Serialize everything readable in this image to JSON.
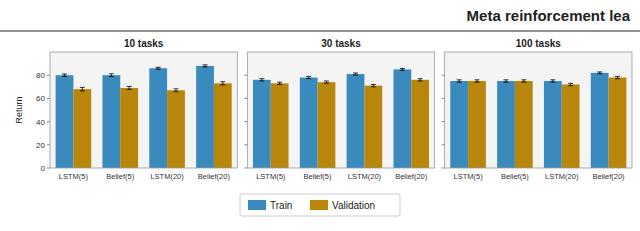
{
  "title": "Meta reinforcement lea",
  "chart_data": [
    {
      "type": "bar",
      "title": "10 tasks",
      "ylabel": "Return",
      "categories": [
        "LSTM(5)",
        "Belief(5)",
        "LSTM(20)",
        "Belief(20)"
      ],
      "series": [
        {
          "name": "Train",
          "color": "#3B8ABE",
          "values": [
            80,
            80,
            86,
            88
          ],
          "errors": [
            1.0,
            1.2,
            0.8,
            0.9
          ]
        },
        {
          "name": "Validation",
          "color": "#B8860B",
          "values": [
            68,
            69,
            67,
            73
          ],
          "errors": [
            1.5,
            1.3,
            1.2,
            1.4
          ]
        }
      ],
      "ylim": [
        0,
        100
      ],
      "yticks": [
        0,
        20,
        40,
        60,
        80
      ],
      "legend": "bottom"
    },
    {
      "type": "bar",
      "title": "30 tasks",
      "categories": [
        "LSTM(5)",
        "Belief(5)",
        "LSTM(20)",
        "Belief(20)"
      ],
      "series": [
        {
          "name": "Train",
          "color": "#3B8ABE",
          "values": [
            76,
            78,
            81,
            85
          ],
          "errors": [
            1.0,
            1.0,
            0.9,
            0.8
          ]
        },
        {
          "name": "Validation",
          "color": "#B8860B",
          "values": [
            73,
            74,
            71,
            76
          ],
          "errors": [
            1.0,
            1.0,
            1.0,
            1.0
          ]
        }
      ],
      "ylim": [
        0,
        100
      ],
      "yticks": [
        0,
        20,
        40,
        60,
        80
      ],
      "tick_labels": "x"
    },
    {
      "type": "bar",
      "title": "100 tasks",
      "categories": [
        "LSTM(5)",
        "Belief(5)",
        "LSTM(20)",
        "Belief(20)"
      ],
      "series": [
        {
          "name": "Train",
          "color": "#3B8ABE",
          "values": [
            75,
            75,
            75,
            82
          ],
          "errors": [
            1.0,
            1.0,
            1.0,
            0.8
          ]
        },
        {
          "name": "Validation",
          "color": "#B8860B",
          "values": [
            75,
            75,
            72,
            78
          ],
          "errors": [
            1.0,
            1.0,
            1.0,
            1.0
          ]
        }
      ],
      "ylim": [
        0,
        100
      ],
      "yticks": [
        0,
        20,
        40,
        60,
        80
      ],
      "tick_labels": "x"
    }
  ]
}
